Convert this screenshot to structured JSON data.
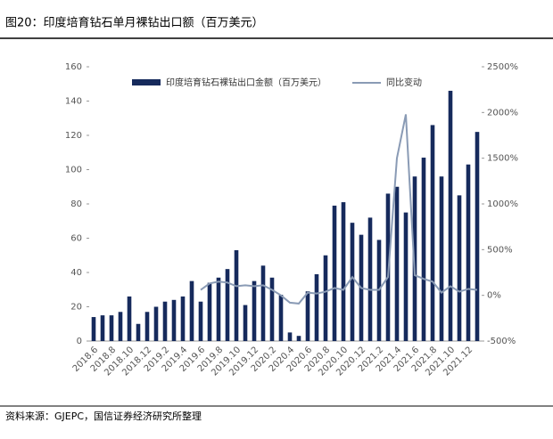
{
  "chart_data": {
    "type": "bar_line",
    "title": "图20：印度培育钻石单月裸钻出口额（百万美元）",
    "source": "资料来源：GJEPC，国信证券经济研究所整理",
    "categories": [
      "2018.6",
      null,
      "2018.8",
      null,
      "2018.10",
      null,
      "2018.12",
      null,
      "2019.2",
      null,
      "2019.4",
      null,
      "2019.6",
      null,
      "2019.8",
      null,
      "2019.10",
      null,
      "2019.12",
      null,
      "2020.2",
      null,
      "2020.4",
      null,
      "2020.6",
      null,
      "2020.8",
      null,
      "2020.10",
      null,
      "2020.12",
      null,
      "2021.2",
      null,
      "2021.4",
      null,
      "2021.6",
      null,
      "2021.8",
      null,
      "2021.10",
      null,
      "2021.12",
      null
    ],
    "series": [
      {
        "name": "印度培育钻石裸钻出口金额（百万美元）",
        "color": "#162a5c",
        "type": "bar",
        "values": [
          14,
          15,
          15,
          17,
          26,
          10,
          17,
          20,
          23,
          24,
          26,
          35,
          23,
          34,
          37,
          42,
          53,
          21,
          35,
          44,
          37,
          27,
          5,
          3,
          29,
          39,
          50,
          79,
          81,
          69,
          62,
          72,
          59,
          86,
          90,
          75,
          96,
          107,
          126,
          96,
          146,
          85,
          103,
          122
        ]
      },
      {
        "name": "同比变动",
        "color": "#8a9bb5",
        "type": "line",
        "axis": "y2",
        "values": [
          null,
          null,
          null,
          null,
          null,
          null,
          null,
          null,
          null,
          null,
          null,
          null,
          60,
          130,
          150,
          140,
          100,
          110,
          100,
          110,
          60,
          0,
          -80,
          -90,
          30,
          20,
          40,
          80,
          60,
          200,
          80,
          60,
          60,
          200,
          1500,
          1980,
          220,
          180,
          150,
          30,
          100,
          40,
          70,
          60
        ]
      }
    ],
    "ylim": [
      0,
      160
    ],
    "yticks": [
      0,
      20,
      40,
      60,
      80,
      100,
      120,
      140,
      160
    ],
    "y2lim": [
      -500,
      2500
    ],
    "y2ticks": [
      {
        "value": -500,
        "label": "-500%"
      },
      {
        "value": 0,
        "label": "0%"
      },
      {
        "value": 500,
        "label": "500%"
      },
      {
        "value": 1000,
        "label": "1000%"
      },
      {
        "value": 1500,
        "label": "1500%"
      },
      {
        "value": 2000,
        "label": "2000%"
      },
      {
        "value": 2500,
        "label": "2500%"
      }
    ]
  }
}
